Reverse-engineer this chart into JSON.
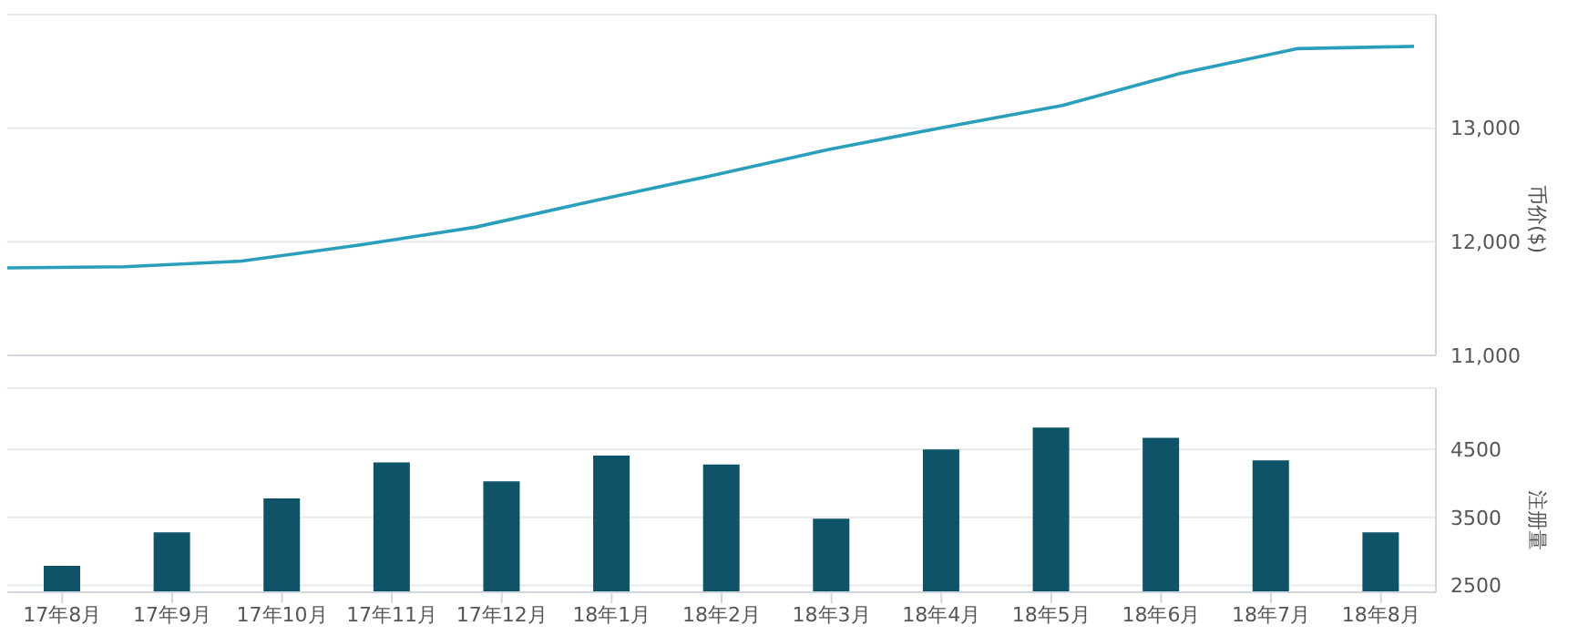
{
  "chart_data": [
    {
      "type": "line",
      "ylabel": "币价($)",
      "categories": [
        null,
        null,
        null,
        null,
        null,
        null,
        null,
        null,
        null,
        null,
        null,
        null,
        null
      ],
      "series": [
        {
          "color": "#2a9fbb",
          "values": [
            11770,
            11780,
            11830,
            11970,
            12130,
            12360,
            12580,
            12810,
            13010,
            13200,
            13480,
            13700,
            13720
          ]
        }
      ],
      "ylim": [
        11000,
        14000
      ],
      "yticks": [
        {
          "value": 11000,
          "label": "11,000"
        },
        {
          "value": 12000,
          "label": "12,000"
        },
        {
          "value": 13000,
          "label": "13,000"
        }
      ],
      "grid": "y",
      "marker": "none"
    },
    {
      "type": "bar",
      "ylabel": "注册量",
      "categories": [
        "17年8月",
        "17年9月",
        "17年10月",
        "17年11月",
        "17年12月",
        "18年1月",
        "18年2月",
        "18年3月",
        "18年4月",
        "18年5月",
        "18年6月",
        "18年7月",
        "18年8月"
      ],
      "series": [
        {
          "color": "#0e5367",
          "values": [
            2790,
            3280,
            3780,
            4310,
            4030,
            4410,
            4280,
            3480,
            4500,
            4820,
            4670,
            4340,
            3280
          ]
        }
      ],
      "ylim": [
        2400,
        5400
      ],
      "yticks": [
        2500,
        3500,
        4500
      ],
      "grid": "y"
    }
  ]
}
